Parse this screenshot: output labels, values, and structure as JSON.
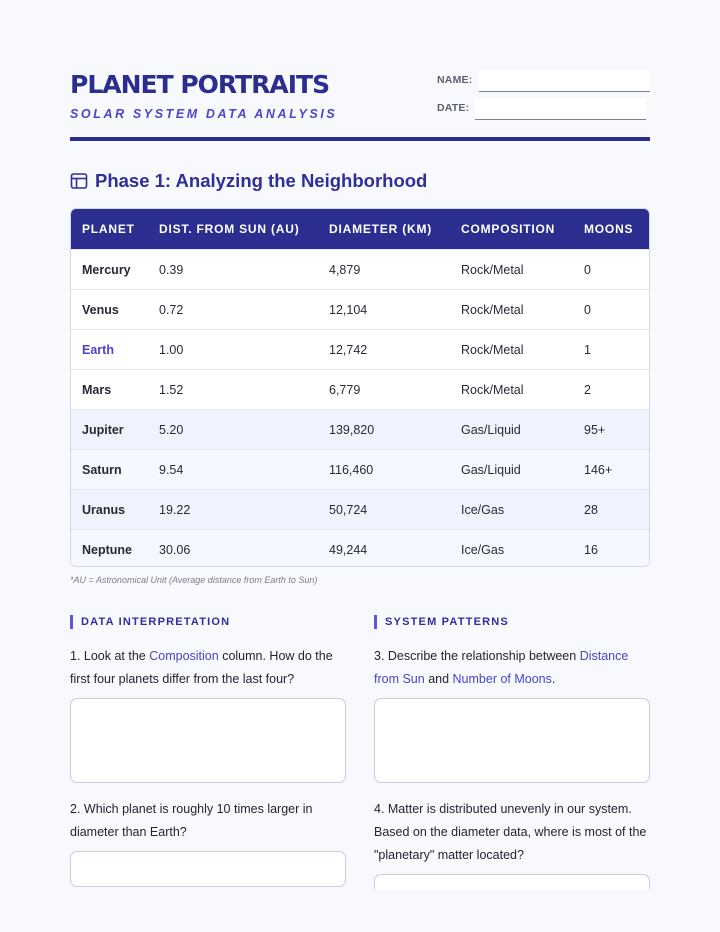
{
  "header": {
    "title": "PLANET PORTRAITS",
    "subtitle": "SOLAR SYSTEM DATA ANALYSIS",
    "name_label": "NAME:",
    "date_label": "DATE:"
  },
  "section": {
    "icon": "table-icon",
    "title": "Phase 1: Analyzing the Neighborhood"
  },
  "table": {
    "columns": [
      "PLANET",
      "DIST. FROM SUN (AU)",
      "DIAMETER (KM)",
      "COMPOSITION",
      "MOONS"
    ],
    "rows": [
      {
        "planet": "Mercury",
        "distance": "0.39",
        "diameter": "4,879",
        "composition": "Rock/Metal",
        "moons": "0"
      },
      {
        "planet": "Venus",
        "distance": "0.72",
        "diameter": "12,104",
        "composition": "Rock/Metal",
        "moons": "0"
      },
      {
        "planet": "Earth",
        "distance": "1.00",
        "diameter": "12,742",
        "composition": "Rock/Metal",
        "moons": "1"
      },
      {
        "planet": "Mars",
        "distance": "1.52",
        "diameter": "6,779",
        "composition": "Rock/Metal",
        "moons": "2"
      },
      {
        "planet": "Jupiter",
        "distance": "5.20",
        "diameter": "139,820",
        "composition": "Gas/Liquid",
        "moons": "95+"
      },
      {
        "planet": "Saturn",
        "distance": "9.54",
        "diameter": "116,460",
        "composition": "Gas/Liquid",
        "moons": "146+"
      },
      {
        "planet": "Uranus",
        "distance": "19.22",
        "diameter": "50,724",
        "composition": "Ice/Gas",
        "moons": "28"
      },
      {
        "planet": "Neptune",
        "distance": "30.06",
        "diameter": "49,244",
        "composition": "Ice/Gas",
        "moons": "16"
      }
    ],
    "footnote": "*AU = Astronomical Unit (Average distance from Earth to Sun)"
  },
  "left_column": {
    "heading": "DATA INTERPRETATION",
    "q1": {
      "pre": "1. Look at the ",
      "kw": "Composition",
      "post": " column. How do the first four planets differ from the last four?"
    },
    "q2": {
      "text": "2. Which planet is roughly 10 times larger in diameter than Earth?"
    }
  },
  "right_column": {
    "heading": "SYSTEM PATTERNS",
    "q3": {
      "pre": "3. Describe the relationship between ",
      "kw1": "Distance from Sun",
      "mid": " and ",
      "kw2": "Number of Moons",
      "post": "."
    },
    "q4": {
      "text": "4. Matter is distributed unevenly in our system. Based on the diameter data, where is most of the \"planetary\" matter located?"
    }
  },
  "colors": {
    "accent": "#2b2d8f",
    "keyword": "#4a44c6",
    "outer_band": "#eef3fd"
  }
}
